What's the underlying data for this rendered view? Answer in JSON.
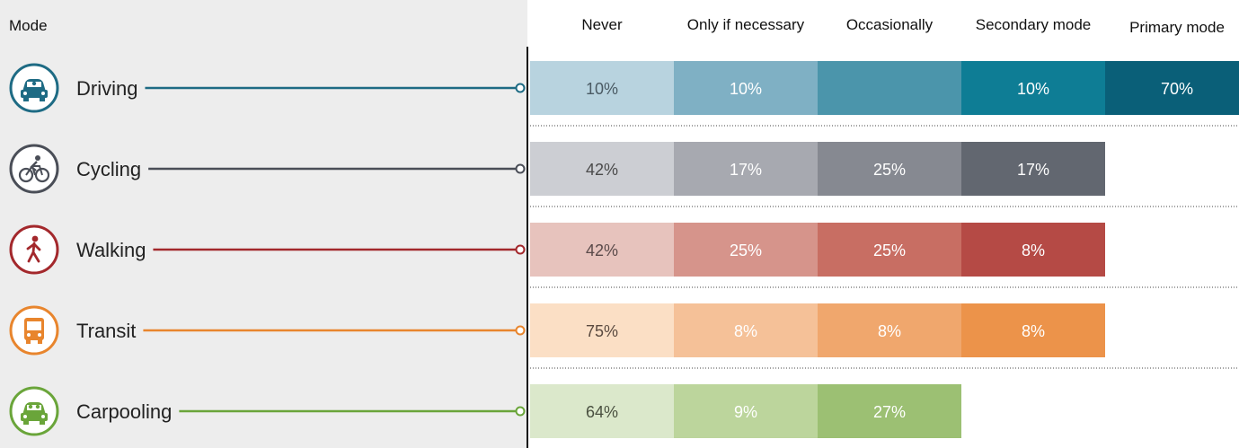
{
  "chart_data": {
    "type": "bar",
    "stacked": true,
    "orientation": "horizontal",
    "row_header": "Mode",
    "categories": [
      "Never",
      "Only if necessary",
      "Occasionally",
      "Secondary mode",
      "Primary mode"
    ],
    "rows": [
      {
        "name": "Driving",
        "icon": "car-icon",
        "color": "#1e6b84",
        "values": [
          10,
          10,
          null,
          10,
          70
        ],
        "labels": [
          "10%",
          "10%",
          "",
          "10%",
          "70%"
        ],
        "segment_colors": [
          "#b8d3df",
          "#7fb0c4",
          "#4b95ab",
          "#0e7d95",
          "#0a5f78"
        ],
        "label_colors": [
          "#4a5a63",
          "#ffffff",
          "#ffffff",
          "#ffffff",
          "#ffffff"
        ]
      },
      {
        "name": "Cycling",
        "icon": "bicycle-icon",
        "color": "#4a4e57",
        "values": [
          42,
          17,
          25,
          17,
          null
        ],
        "labels": [
          "42%",
          "17%",
          "25%",
          "17%",
          ""
        ],
        "segment_colors": [
          "#ccced3",
          "#a7a9b0",
          "#868991",
          "#626770",
          "#ffffff"
        ],
        "label_colors": [
          "#4a4a4a",
          "#ffffff",
          "#ffffff",
          "#ffffff",
          "#ffffff"
        ]
      },
      {
        "name": "Walking",
        "icon": "walking-person-icon",
        "color": "#a3282c",
        "values": [
          42,
          25,
          25,
          8,
          null
        ],
        "labels": [
          "42%",
          "25%",
          "25%",
          "8%",
          ""
        ],
        "segment_colors": [
          "#e7c3bd",
          "#d6948b",
          "#c86e63",
          "#b54a45",
          "#ffffff"
        ],
        "label_colors": [
          "#5a4a4a",
          "#ffffff",
          "#ffffff",
          "#ffffff",
          "#ffffff"
        ]
      },
      {
        "name": "Transit",
        "icon": "bus-icon",
        "color": "#e8852d",
        "values": [
          75,
          8,
          8,
          8,
          null
        ],
        "labels": [
          "75%",
          "8%",
          "8%",
          "8%",
          ""
        ],
        "segment_colors": [
          "#fbdfc5",
          "#f5c198",
          "#f0a76d",
          "#ec934a",
          "#ffffff"
        ],
        "label_colors": [
          "#5a4a40",
          "#ffffff",
          "#ffffff",
          "#ffffff",
          "#ffffff"
        ]
      },
      {
        "name": "Carpooling",
        "icon": "carpool-icon",
        "color": "#6aa53a",
        "values": [
          64,
          9,
          27,
          null,
          null
        ],
        "labels": [
          "64%",
          "9%",
          "27%",
          "",
          ""
        ],
        "segment_colors": [
          "#dbe8cb",
          "#bcd59c",
          "#9cc073",
          "#ffffff",
          "#ffffff"
        ],
        "label_colors": [
          "#4a5040",
          "#ffffff",
          "#ffffff",
          "#ffffff",
          "#ffffff"
        ]
      }
    ],
    "grid": false,
    "legend": "top (column headers)"
  }
}
